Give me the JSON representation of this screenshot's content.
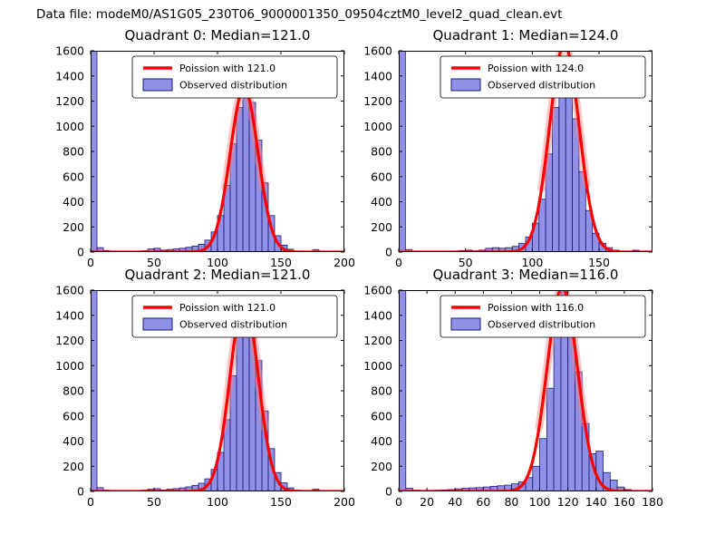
{
  "figure": {
    "title": "Data file: modeM0/AS1G05_230T06_9000001350_09504cztM0_level2_quad_clean.evt"
  },
  "colors": {
    "bar_fill": "#6b6bdd",
    "bar_edge": "#1c1c78",
    "curve": "#ff0000",
    "curve_glow": "rgba(255,130,130,0.45)",
    "axes": "#000000",
    "legend_border": "#000000"
  },
  "chart_data": [
    {
      "type": "bar",
      "subtype": "histogram-with-fit",
      "title": "Quadrant 0: Median=121.0",
      "median": 121.0,
      "legend": [
        "Poission with 121.0",
        "Observed distribution"
      ],
      "xlim": [
        0,
        200
      ],
      "ylim": [
        0,
        1600
      ],
      "xticks": [
        0,
        50,
        100,
        150,
        200
      ],
      "yticks": [
        0,
        200,
        400,
        600,
        800,
        1000,
        1200,
        1400,
        1600
      ],
      "bin_start": 0,
      "bin_width": 5,
      "counts": [
        1650,
        35,
        12,
        6,
        4,
        4,
        5,
        6,
        10,
        25,
        30,
        15,
        20,
        25,
        30,
        38,
        48,
        62,
        95,
        160,
        290,
        530,
        860,
        1150,
        1300,
        1190,
        890,
        550,
        290,
        130,
        55,
        22,
        8,
        4,
        2,
        20,
        3,
        0,
        0,
        0
      ],
      "fit": {
        "mean": 121.0,
        "sigma": 11.0,
        "amplitude": 1300
      }
    },
    {
      "type": "bar",
      "subtype": "histogram-with-fit",
      "title": "Quadrant 1: Median=124.0",
      "median": 124.0,
      "legend": [
        "Poission with 124.0",
        "Observed distribution"
      ],
      "xlim": [
        0,
        190
      ],
      "ylim": [
        0,
        1600
      ],
      "xticks": [
        0,
        50,
        100,
        150
      ],
      "yticks": [
        0,
        200,
        400,
        600,
        800,
        1000,
        1200,
        1400,
        1600
      ],
      "bin_start": 0,
      "bin_width": 5,
      "counts": [
        1650,
        20,
        8,
        5,
        4,
        4,
        5,
        6,
        8,
        12,
        15,
        10,
        15,
        30,
        35,
        30,
        35,
        45,
        70,
        120,
        230,
        420,
        780,
        1150,
        1550,
        1450,
        1060,
        640,
        330,
        150,
        70,
        35,
        15,
        6,
        3,
        15,
        2,
        0
      ],
      "fit": {
        "mean": 124.0,
        "sigma": 11.1,
        "amplitude": 1650
      }
    },
    {
      "type": "bar",
      "subtype": "histogram-with-fit",
      "title": "Quadrant 2: Median=121.0",
      "median": 121.0,
      "legend": [
        "Poission with 121.0",
        "Observed distribution"
      ],
      "xlim": [
        0,
        200
      ],
      "ylim": [
        0,
        1600
      ],
      "xticks": [
        0,
        50,
        100,
        150,
        200
      ],
      "yticks": [
        0,
        200,
        400,
        600,
        800,
        1000,
        1200,
        1400,
        1600
      ],
      "bin_start": 0,
      "bin_width": 5,
      "counts": [
        1650,
        30,
        10,
        5,
        4,
        4,
        5,
        6,
        10,
        18,
        22,
        12,
        18,
        22,
        28,
        36,
        48,
        65,
        100,
        175,
        310,
        570,
        920,
        1300,
        1500,
        1380,
        1040,
        640,
        340,
        150,
        68,
        28,
        10,
        4,
        2,
        18,
        2,
        0,
        0,
        0
      ],
      "fit": {
        "mean": 121.0,
        "sigma": 11.0,
        "amplitude": 1530
      }
    },
    {
      "type": "bar",
      "subtype": "histogram-with-fit",
      "title": "Quadrant 3: Median=116.0",
      "median": 116.0,
      "legend": [
        "Poission with 116.0",
        "Observed distribution"
      ],
      "xlim": [
        0,
        180
      ],
      "ylim": [
        0,
        1600
      ],
      "xticks": [
        0,
        20,
        40,
        60,
        80,
        100,
        120,
        140,
        160,
        180
      ],
      "yticks": [
        0,
        200,
        400,
        600,
        800,
        1000,
        1200,
        1400,
        1600
      ],
      "bin_start": 0,
      "bin_width": 5,
      "counts": [
        1650,
        25,
        10,
        6,
        8,
        10,
        12,
        15,
        20,
        25,
        28,
        30,
        35,
        40,
        45,
        50,
        60,
        75,
        110,
        200,
        420,
        820,
        1320,
        1600,
        1350,
        950,
        540,
        300,
        320,
        150,
        90,
        35,
        15,
        8,
        4,
        2
      ],
      "fit": {
        "mean": 116.0,
        "sigma": 10.8,
        "amplitude": 1620
      }
    }
  ]
}
